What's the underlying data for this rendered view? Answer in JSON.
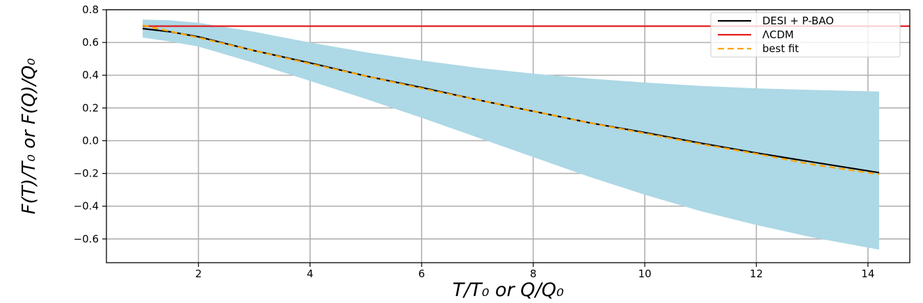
{
  "chart_data": {
    "type": "line",
    "title": "",
    "xlabel": "T/T₀ or Q/Q₀",
    "ylabel": "F(T)/T₀ or F(Q)/Q₀",
    "xlim": [
      0.35,
      14.75
    ],
    "ylim": [
      -0.745,
      0.8
    ],
    "xticks": [
      2,
      4,
      6,
      8,
      10,
      12,
      14
    ],
    "xtick_labels": [
      "2",
      "4",
      "6",
      "8",
      "10",
      "12",
      "14"
    ],
    "yticks": [
      0.8,
      0.6,
      0.4,
      0.2,
      0.0,
      -0.2,
      -0.4,
      -0.6
    ],
    "ytick_labels": [
      "0.8",
      "0.6",
      "0.4",
      "0.2",
      "0.0",
      "−0.2",
      "−0.4",
      "−0.6"
    ],
    "grid": true,
    "legend_position": "top-right",
    "band": {
      "color": "#add8e6",
      "x": [
        1.0,
        1.5,
        2,
        3,
        4,
        5,
        6,
        7,
        8,
        9,
        10,
        11,
        12,
        13,
        14.2
      ],
      "upper": [
        0.74,
        0.735,
        0.72,
        0.665,
        0.6,
        0.54,
        0.49,
        0.445,
        0.41,
        0.38,
        0.355,
        0.335,
        0.32,
        0.31,
        0.3
      ],
      "lower": [
        0.63,
        0.605,
        0.575,
        0.475,
        0.365,
        0.255,
        0.14,
        0.02,
        -0.1,
        -0.22,
        -0.33,
        -0.43,
        -0.515,
        -0.59,
        -0.665
      ]
    },
    "series": [
      {
        "name": "DESI + P-BAO",
        "color": "#000000",
        "style": "solid",
        "x": [
          1.0,
          1.5,
          2,
          3,
          4,
          5,
          6,
          7,
          8,
          9,
          10,
          11,
          12,
          13,
          14.2
        ],
        "y": [
          0.685,
          0.665,
          0.635,
          0.55,
          0.475,
          0.395,
          0.325,
          0.25,
          0.18,
          0.11,
          0.05,
          -0.015,
          -0.075,
          -0.13,
          -0.195
        ]
      },
      {
        "name": "ΛCDM",
        "color": "#e41a1c",
        "style": "solid",
        "x": [
          1.0,
          14.75
        ],
        "y": [
          0.7,
          0.7
        ]
      },
      {
        "name": "best fit",
        "color": "#ffa500",
        "style": "dashed",
        "x": [
          1.0,
          2,
          3,
          4,
          5,
          6,
          7,
          8,
          9,
          10,
          11,
          12,
          13,
          14.2
        ],
        "y": [
          0.705,
          0.63,
          0.55,
          0.47,
          0.395,
          0.32,
          0.25,
          0.18,
          0.11,
          0.045,
          -0.02,
          -0.08,
          -0.145,
          -0.205
        ]
      }
    ]
  }
}
